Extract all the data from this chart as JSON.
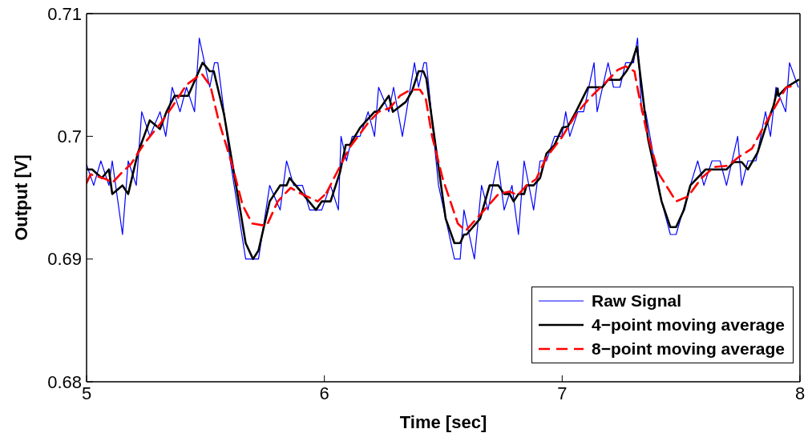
{
  "chart_data": {
    "type": "line",
    "xlabel": "Time [sec]",
    "ylabel": "Output [V]",
    "xlim": [
      5,
      8
    ],
    "xticks": [
      5,
      6,
      7,
      8
    ],
    "ylim": [
      0.68,
      0.71
    ],
    "yticks": [
      0.68,
      0.69,
      0.7,
      0.71
    ],
    "legend": "bottom right",
    "marker": "none",
    "series": [
      {
        "name": "Raw Signal",
        "color": "#0000ff",
        "line_style": "solid",
        "x": [
          5.0,
          5.03,
          5.06,
          5.094,
          5.108,
          5.151,
          5.175,
          5.209,
          5.232,
          5.266,
          5.309,
          5.333,
          5.36,
          5.393,
          5.42,
          5.454,
          5.474,
          5.518,
          5.538,
          5.552,
          5.602,
          5.669,
          5.723,
          5.77,
          5.814,
          5.841,
          5.871,
          5.908,
          5.938,
          5.989,
          6.016,
          6.026,
          6.059,
          6.07,
          6.093,
          6.117,
          6.15,
          6.184,
          6.211,
          6.228,
          6.271,
          6.291,
          6.328,
          6.379,
          6.396,
          6.419,
          6.429,
          6.48,
          6.547,
          6.571,
          6.587,
          6.631,
          6.661,
          6.688,
          6.729,
          6.756,
          6.789,
          6.816,
          6.84,
          6.88,
          6.907,
          6.934,
          6.968,
          6.998,
          7.015,
          7.032,
          7.066,
          7.09,
          7.134,
          7.147,
          7.193,
          7.216,
          7.243,
          7.267,
          7.3,
          7.317,
          7.334,
          7.351,
          7.418,
          7.455,
          7.479,
          7.539,
          7.57,
          7.596,
          7.63,
          7.664,
          7.691,
          7.738,
          7.755,
          7.781,
          7.815,
          7.855,
          7.876,
          7.899,
          7.94,
          7.956,
          7.993
        ],
        "values": [
          0.6977,
          0.696,
          0.698,
          0.696,
          0.698,
          0.692,
          0.698,
          0.696,
          0.702,
          0.7,
          0.702,
          0.7,
          0.704,
          0.702,
          0.704,
          0.702,
          0.708,
          0.704,
          0.706,
          0.706,
          0.6983,
          0.69,
          0.69,
          0.696,
          0.694,
          0.698,
          0.696,
          0.696,
          0.694,
          0.694,
          0.6955,
          0.696,
          0.694,
          0.7,
          0.698,
          0.7,
          0.7,
          0.702,
          0.7,
          0.704,
          0.702,
          0.704,
          0.7,
          0.706,
          0.704,
          0.706,
          0.706,
          0.696,
          0.69,
          0.69,
          0.694,
          0.69,
          0.696,
          0.694,
          0.698,
          0.694,
          0.696,
          0.692,
          0.698,
          0.694,
          0.698,
          0.698,
          0.7,
          0.7,
          0.702,
          0.7,
          0.702,
          0.702,
          0.706,
          0.702,
          0.706,
          0.704,
          0.704,
          0.706,
          0.706,
          0.708,
          0.702,
          0.702,
          0.6947,
          0.692,
          0.692,
          0.696,
          0.698,
          0.696,
          0.698,
          0.698,
          0.696,
          0.7,
          0.696,
          0.698,
          0.698,
          0.702,
          0.7,
          0.704,
          0.702,
          0.706,
          0.704
        ]
      },
      {
        "name": "4−point moving average",
        "color": "#000000",
        "line_style": "solid",
        "x": [
          5.0,
          5.024,
          5.064,
          5.094,
          5.108,
          5.151,
          5.175,
          5.215,
          5.266,
          5.309,
          5.336,
          5.37,
          5.427,
          5.488,
          5.518,
          5.535,
          5.578,
          5.646,
          5.669,
          5.7,
          5.723,
          5.77,
          5.814,
          5.841,
          5.854,
          5.871,
          5.965,
          5.989,
          6.016,
          6.026,
          6.066,
          6.09,
          6.107,
          6.15,
          6.211,
          6.224,
          6.271,
          6.288,
          6.342,
          6.369,
          6.396,
          6.416,
          6.429,
          6.463,
          6.51,
          6.547,
          6.571,
          6.587,
          6.598,
          6.655,
          6.695,
          6.732,
          6.756,
          6.779,
          6.796,
          6.816,
          6.84,
          6.85,
          6.88,
          6.907,
          6.934,
          6.968,
          7.001,
          7.024,
          7.058,
          7.109,
          7.169,
          7.193,
          7.243,
          7.27,
          7.294,
          7.314,
          7.361,
          7.418,
          7.455,
          7.479,
          7.512,
          7.539,
          7.603,
          7.691,
          7.721,
          7.755,
          7.781,
          7.822,
          7.855,
          7.889,
          7.906,
          7.909,
          7.943,
          7.993
        ],
        "values": [
          0.6973,
          0.6973,
          0.6966,
          0.6973,
          0.6953,
          0.696,
          0.6953,
          0.6986,
          0.7013,
          0.7006,
          0.702,
          0.7033,
          0.7033,
          0.706,
          0.7053,
          0.7053,
          0.7018,
          0.694,
          0.6913,
          0.69,
          0.6907,
          0.6947,
          0.696,
          0.696,
          0.6966,
          0.6962,
          0.694,
          0.6947,
          0.6947,
          0.6947,
          0.6971,
          0.6993,
          0.6993,
          0.7007,
          0.702,
          0.702,
          0.7033,
          0.702,
          0.7028,
          0.7037,
          0.7053,
          0.7053,
          0.7047,
          0.6999,
          0.6933,
          0.6913,
          0.6913,
          0.692,
          0.692,
          0.6933,
          0.696,
          0.696,
          0.6953,
          0.6953,
          0.6947,
          0.6953,
          0.6953,
          0.696,
          0.696,
          0.6966,
          0.6986,
          0.6993,
          0.7007,
          0.7008,
          0.702,
          0.704,
          0.704,
          0.7046,
          0.7046,
          0.7053,
          0.7061,
          0.7073,
          0.6998,
          0.6947,
          0.6926,
          0.6926,
          0.694,
          0.696,
          0.6973,
          0.6973,
          0.6979,
          0.6979,
          0.6973,
          0.6987,
          0.7007,
          0.7025,
          0.7039,
          0.7033,
          0.704,
          0.7046
        ]
      },
      {
        "name": "8−point moving average",
        "color": "#ff0000",
        "line_style": "dashed",
        "x": [
          5.0,
          5.017,
          5.084,
          5.108,
          5.151,
          5.185,
          5.242,
          5.309,
          5.36,
          5.42,
          5.484,
          5.521,
          5.555,
          5.612,
          5.656,
          5.696,
          5.757,
          5.804,
          5.858,
          5.905,
          5.972,
          6.016,
          6.009,
          6.059,
          6.107,
          6.184,
          6.228,
          6.275,
          6.318,
          6.362,
          6.402,
          6.426,
          6.453,
          6.497,
          6.561,
          6.594,
          6.645,
          6.682,
          6.732,
          6.779,
          6.813,
          6.85,
          6.89,
          6.934,
          6.998,
          7.001,
          7.058,
          7.115,
          7.183,
          7.233,
          7.267,
          7.304,
          7.321,
          7.354,
          7.405,
          7.479,
          7.529,
          7.586,
          7.64,
          7.697,
          7.741,
          7.798,
          7.842,
          7.889,
          7.943,
          7.973
        ],
        "values": [
          0.6962,
          0.6969,
          0.6965,
          0.6962,
          0.6971,
          0.6977,
          0.6994,
          0.701,
          0.7024,
          0.7042,
          0.7051,
          0.7041,
          0.7013,
          0.6977,
          0.6944,
          0.6929,
          0.6927,
          0.6947,
          0.6958,
          0.6953,
          0.6947,
          0.6955,
          0.6954,
          0.6973,
          0.6991,
          0.7011,
          0.702,
          0.7023,
          0.7033,
          0.7038,
          0.7038,
          0.7031,
          0.7,
          0.6966,
          0.6929,
          0.6923,
          0.6934,
          0.6942,
          0.6953,
          0.6955,
          0.6952,
          0.696,
          0.6965,
          0.6983,
          0.6999,
          0.7,
          0.7018,
          0.7031,
          0.7044,
          0.7054,
          0.7057,
          0.7053,
          0.7035,
          0.7005,
          0.697,
          0.6947,
          0.6951,
          0.6966,
          0.6975,
          0.6976,
          0.6983,
          0.699,
          0.7006,
          0.7022,
          0.704,
          0.7041
        ]
      }
    ]
  }
}
